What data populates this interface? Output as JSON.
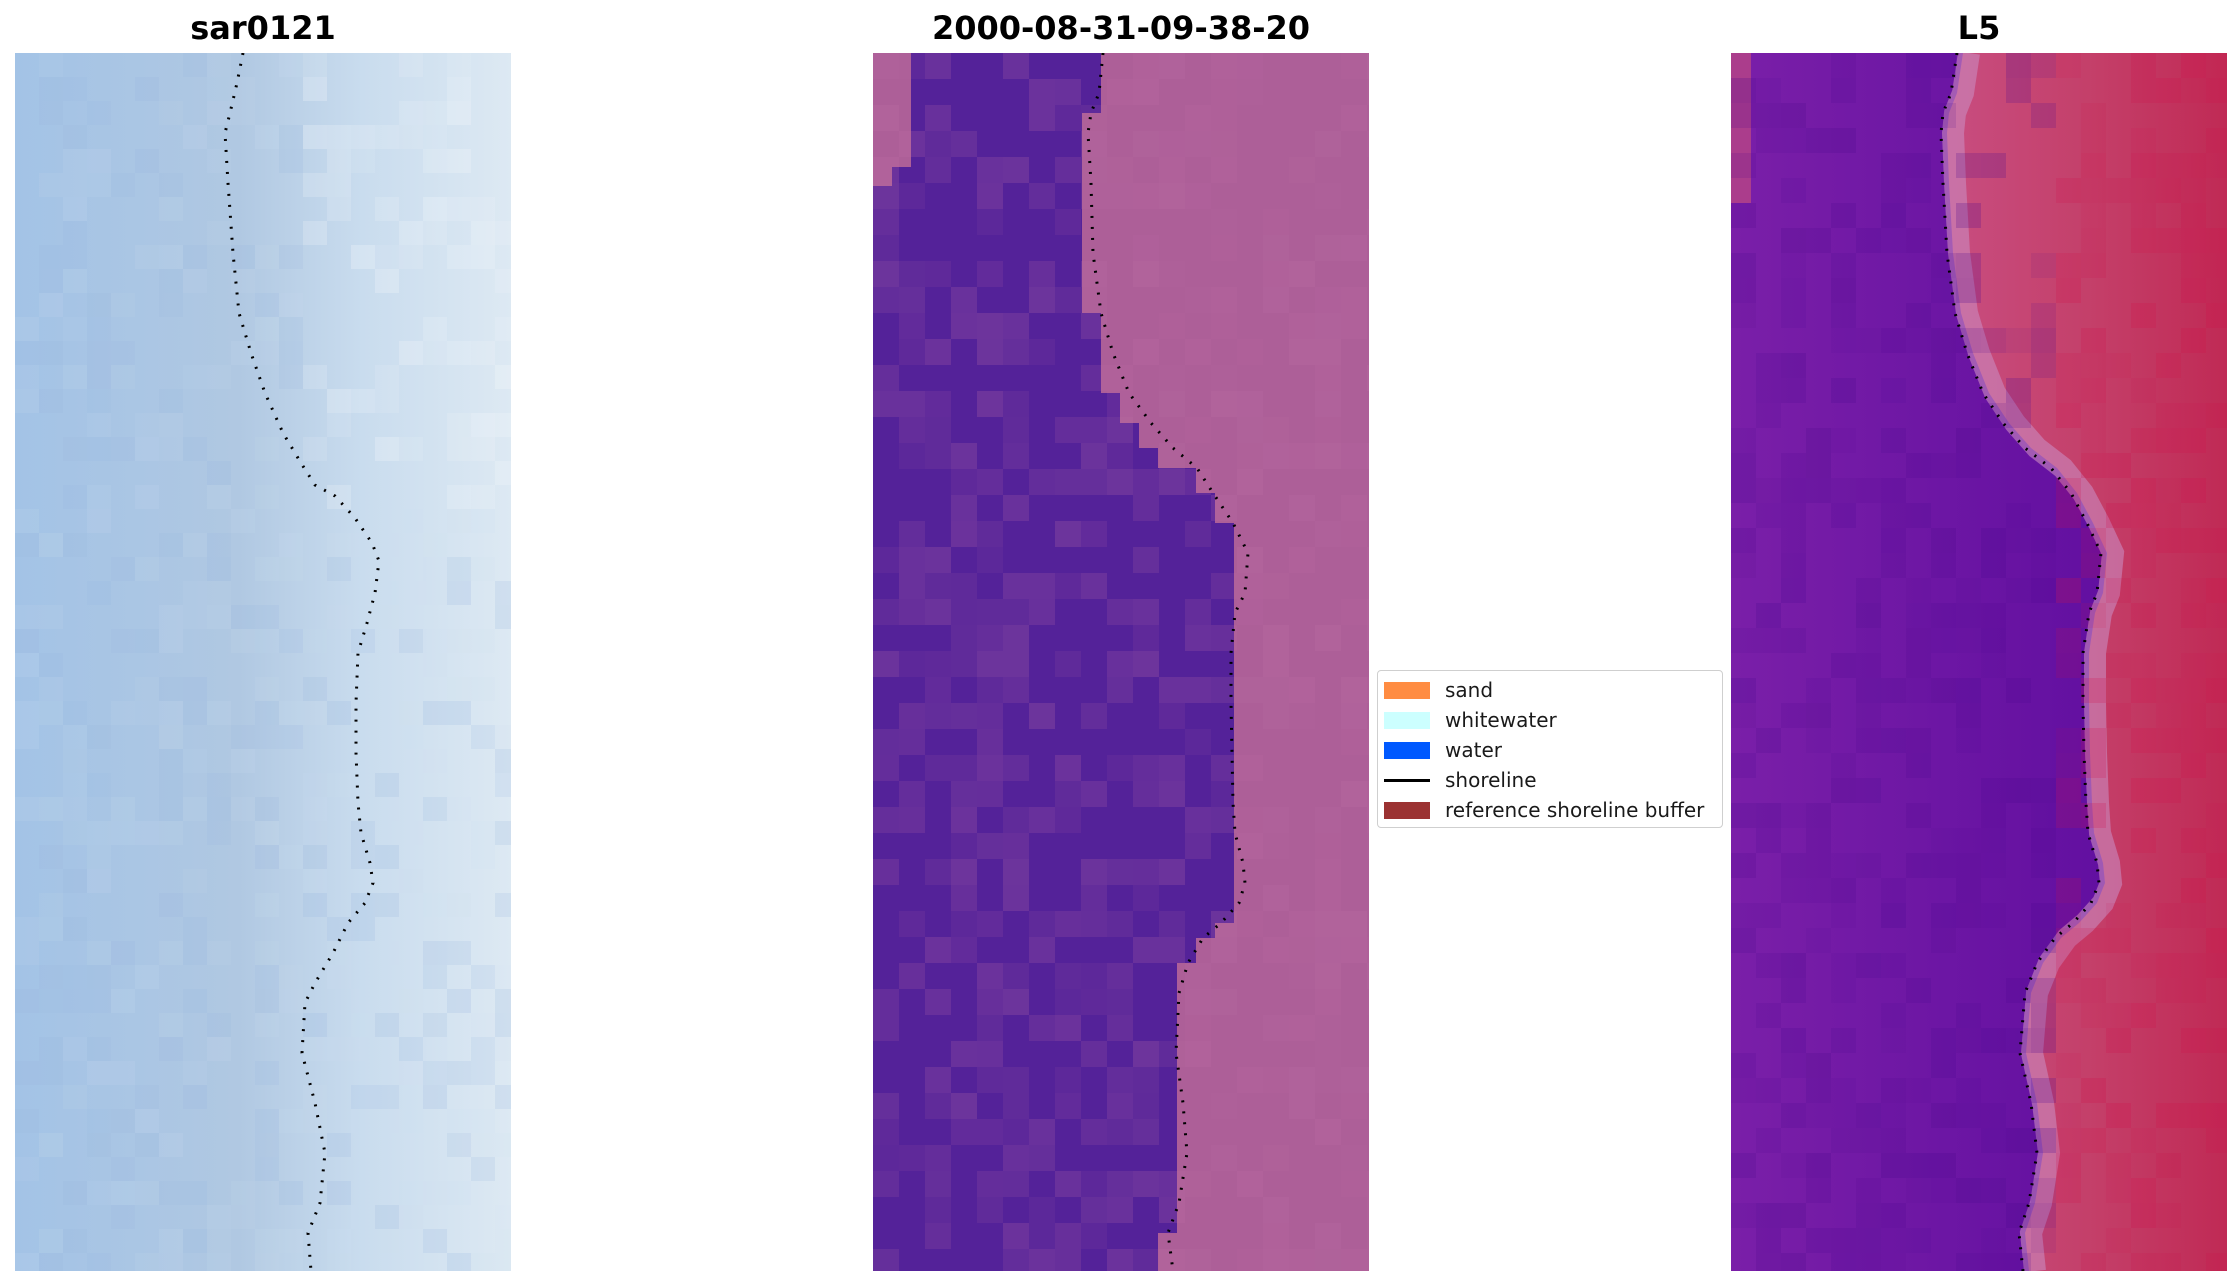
{
  "panels": [
    {
      "id": "rgb",
      "title": "sar0121",
      "type": "image",
      "description": "RGB satellite image with detected shoreline"
    },
    {
      "id": "classified",
      "title": "2000-08-31-09-38-20",
      "type": "image",
      "description": "classified image with detected shoreline"
    },
    {
      "id": "index",
      "title": "L5",
      "type": "image",
      "description": "water index image with detected shoreline"
    }
  ],
  "legend": {
    "items": [
      {
        "label": "sand",
        "kind": "patch",
        "color": "#ff8c42"
      },
      {
        "label": "whitewater",
        "kind": "patch",
        "color": "#ccffff"
      },
      {
        "label": "water",
        "kind": "patch",
        "color": "#0059ff"
      },
      {
        "label": "shoreline",
        "kind": "line",
        "color": "#000000"
      },
      {
        "label": "reference shoreline buffer",
        "kind": "patch",
        "color": "#9b3232"
      }
    ]
  },
  "colors": {
    "rgb_water": "#a9c5e3",
    "rgb_sand": "#e6eef6",
    "class_water": "#542299",
    "class_land": "#b0609a",
    "index_water": "#5b0aa0",
    "index_land": "#c01f4a",
    "shoreline": "#000000"
  }
}
